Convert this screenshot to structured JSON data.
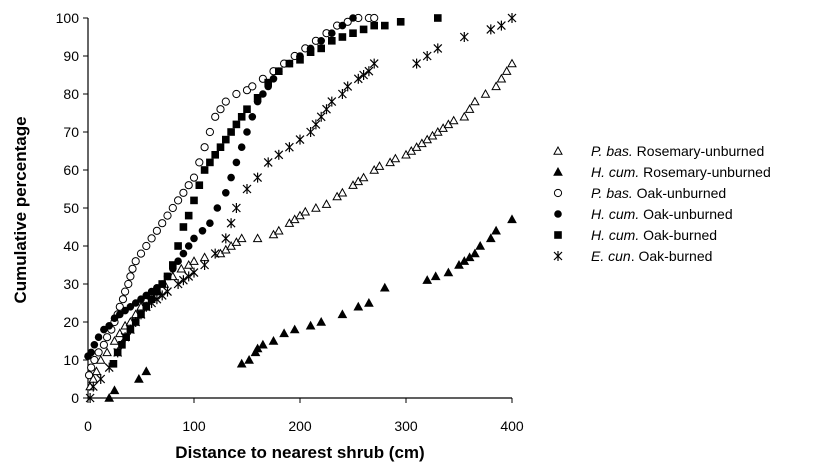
{
  "chart_data": {
    "type": "scatter",
    "xlabel": "Distance to nearest shrub (cm)",
    "ylabel": "Cumulative percentage",
    "xlim": [
      0,
      400
    ],
    "ylim": [
      0,
      100
    ],
    "xticks": [
      0,
      100,
      200,
      300,
      400
    ],
    "yticks": [
      0,
      10,
      20,
      30,
      40,
      50,
      60,
      70,
      80,
      90,
      100
    ],
    "grid": false,
    "legend_position": "right",
    "series": [
      {
        "name": "P. bas. Rosemary-unburned",
        "name_italic": "P. bas.",
        "name_rest": " Rosemary-unburned",
        "marker": "open-triangle",
        "x": [
          2,
          5,
          8,
          12,
          18,
          25,
          30,
          35,
          40,
          45,
          50,
          55,
          60,
          66,
          72,
          80,
          88,
          95,
          100,
          110,
          125,
          130,
          135,
          140,
          145,
          160,
          175,
          180,
          190,
          195,
          200,
          205,
          215,
          225,
          235,
          240,
          250,
          255,
          260,
          270,
          275,
          285,
          290,
          300,
          305,
          310,
          315,
          320,
          325,
          330,
          335,
          340,
          345,
          355,
          360,
          365,
          375,
          385,
          390,
          395,
          400
        ],
        "y": [
          3,
          5,
          7,
          10,
          12,
          15,
          17,
          19,
          20,
          22,
          24,
          26,
          27,
          28,
          30,
          32,
          34,
          35,
          36,
          37,
          38,
          39,
          40,
          41,
          42,
          42,
          43,
          44,
          46,
          47,
          48,
          49,
          50,
          51,
          53,
          54,
          56,
          57,
          58,
          60,
          61,
          62,
          63,
          64,
          65,
          66,
          67,
          68,
          69,
          70,
          71,
          72,
          73,
          74,
          76,
          78,
          80,
          82,
          84,
          86,
          88
        ]
      },
      {
        "name": "H. cum. Rosemary-unburned",
        "name_italic": "H. cum.",
        "name_rest": " Rosemary-unburned",
        "marker": "filled-triangle",
        "x": [
          20,
          25,
          48,
          55,
          145,
          152,
          158,
          160,
          165,
          175,
          185,
          195,
          210,
          220,
          240,
          255,
          265,
          280,
          320,
          328,
          340,
          350,
          355,
          360,
          365,
          370,
          380,
          385,
          400
        ],
        "y": [
          0,
          2,
          5,
          7,
          9,
          10,
          12,
          13,
          14,
          15,
          17,
          18,
          19,
          20,
          22,
          24,
          25,
          29,
          31,
          32,
          33,
          35,
          36,
          37,
          38,
          40,
          42,
          44,
          47
        ]
      },
      {
        "name": "P. bas. Oak-unburned",
        "name_italic": "P. bas.",
        "name_rest": " Oak-unburned",
        "marker": "open-circle",
        "x": [
          1,
          3,
          6,
          10,
          15,
          18,
          22,
          25,
          28,
          30,
          33,
          35,
          38,
          40,
          42,
          45,
          50,
          55,
          60,
          65,
          70,
          75,
          80,
          85,
          90,
          95,
          100,
          105,
          110,
          115,
          120,
          125,
          130,
          140,
          150,
          155,
          165,
          175,
          185,
          195,
          205,
          215,
          225,
          235,
          245,
          255,
          265,
          270
        ],
        "y": [
          6,
          8,
          10,
          12,
          14,
          16,
          18,
          20,
          22,
          24,
          26,
          28,
          30,
          32,
          34,
          36,
          38,
          40,
          42,
          44,
          46,
          48,
          50,
          52,
          54,
          56,
          58,
          62,
          66,
          70,
          74,
          76,
          78,
          80,
          81,
          82,
          84,
          86,
          88,
          90,
          92,
          94,
          96,
          98,
          99,
          100,
          100,
          100
        ]
      },
      {
        "name": "H. cum. Oak-unburned",
        "name_italic": "H. cum.",
        "name_rest": " Oak-unburned",
        "marker": "filled-circle",
        "x": [
          0,
          3,
          6,
          10,
          15,
          20,
          25,
          30,
          35,
          40,
          45,
          50,
          55,
          60,
          65,
          70,
          75,
          80,
          85,
          90,
          95,
          100,
          108,
          115,
          122,
          130,
          135,
          140,
          145,
          150,
          155,
          160,
          165,
          170,
          175,
          180,
          190,
          200,
          210,
          220,
          230,
          240,
          250
        ],
        "y": [
          11,
          12,
          14,
          16,
          18,
          19,
          21,
          22,
          23,
          24,
          25,
          26,
          27,
          28,
          29,
          30,
          32,
          34,
          36,
          38,
          40,
          42,
          44,
          46,
          50,
          54,
          58,
          62,
          66,
          70,
          74,
          78,
          80,
          82,
          84,
          86,
          88,
          90,
          92,
          94,
          96,
          98,
          100
        ]
      },
      {
        "name": "H. cum. Oak-burned",
        "name_italic": "H. cum.",
        "name_rest": " Oak-burned",
        "marker": "filled-square",
        "x": [
          24,
          28,
          32,
          36,
          40,
          45,
          50,
          55,
          60,
          65,
          70,
          75,
          80,
          85,
          90,
          95,
          100,
          105,
          110,
          115,
          120,
          125,
          130,
          135,
          140,
          145,
          150,
          160,
          170,
          180,
          190,
          200,
          210,
          220,
          230,
          240,
          250,
          260,
          270,
          280,
          295,
          330
        ],
        "y": [
          9,
          12,
          14,
          16,
          18,
          20,
          22,
          24,
          26,
          28,
          30,
          32,
          35,
          40,
          45,
          48,
          52,
          56,
          60,
          62,
          64,
          66,
          68,
          70,
          72,
          74,
          76,
          79,
          83,
          86,
          88,
          89,
          91,
          92,
          94,
          95,
          96,
          97,
          98,
          98,
          99,
          100
        ]
      },
      {
        "name": "E. cun. Oak-burned",
        "name_italic": "E. cun",
        "name_rest": ". Oak-burned",
        "marker": "asterisk",
        "x": [
          2,
          5,
          12,
          20,
          28,
          35,
          40,
          45,
          50,
          55,
          60,
          65,
          70,
          75,
          85,
          90,
          95,
          100,
          110,
          120,
          130,
          135,
          140,
          150,
          160,
          170,
          180,
          190,
          200,
          210,
          215,
          220,
          225,
          230,
          240,
          245,
          255,
          260,
          265,
          270,
          310,
          320,
          330,
          355,
          380,
          390,
          400
        ],
        "y": [
          0,
          3,
          5,
          8,
          12,
          16,
          18,
          20,
          22,
          24,
          25,
          26,
          27,
          28,
          30,
          31,
          32,
          33,
          35,
          38,
          42,
          46,
          50,
          55,
          58,
          62,
          64,
          66,
          68,
          70,
          72,
          74,
          76,
          78,
          80,
          82,
          84,
          85,
          86,
          88,
          88,
          90,
          92,
          95,
          97,
          98,
          100
        ]
      }
    ]
  }
}
